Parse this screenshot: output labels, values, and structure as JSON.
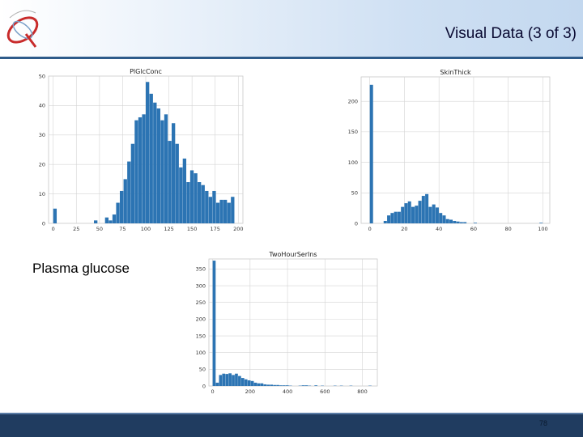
{
  "slide": {
    "title": "Visual Data (3 of 3)",
    "caption": "Plasma glucose",
    "page_number": "78"
  },
  "colors": {
    "bar": "#2c74b3",
    "footer": "#203c60",
    "header_rule": "#2e5b8a"
  },
  "chart_data": [
    {
      "id": "plglc",
      "type": "bar",
      "title": "PlGlcConc",
      "xlim": [
        -5,
        205
      ],
      "ylim": [
        0,
        50
      ],
      "xticks": [
        0,
        25,
        50,
        75,
        100,
        125,
        150,
        175,
        200
      ],
      "yticks": [
        0,
        10,
        20,
        30,
        40,
        50
      ],
      "bin_width": 4,
      "bins": [
        {
          "x": 0,
          "y": 5
        },
        {
          "x": 44,
          "y": 1
        },
        {
          "x": 56,
          "y": 2
        },
        {
          "x": 60,
          "y": 1
        },
        {
          "x": 64,
          "y": 3
        },
        {
          "x": 68,
          "y": 7
        },
        {
          "x": 72,
          "y": 11
        },
        {
          "x": 76,
          "y": 15
        },
        {
          "x": 80,
          "y": 21
        },
        {
          "x": 84,
          "y": 27
        },
        {
          "x": 88,
          "y": 35
        },
        {
          "x": 92,
          "y": 36
        },
        {
          "x": 96,
          "y": 37
        },
        {
          "x": 100,
          "y": 48
        },
        {
          "x": 104,
          "y": 44
        },
        {
          "x": 108,
          "y": 41
        },
        {
          "x": 112,
          "y": 39
        },
        {
          "x": 116,
          "y": 35
        },
        {
          "x": 120,
          "y": 37
        },
        {
          "x": 124,
          "y": 28
        },
        {
          "x": 128,
          "y": 34
        },
        {
          "x": 132,
          "y": 27
        },
        {
          "x": 136,
          "y": 19
        },
        {
          "x": 140,
          "y": 22
        },
        {
          "x": 144,
          "y": 14
        },
        {
          "x": 148,
          "y": 18
        },
        {
          "x": 152,
          "y": 17
        },
        {
          "x": 156,
          "y": 14
        },
        {
          "x": 160,
          "y": 13
        },
        {
          "x": 164,
          "y": 11
        },
        {
          "x": 168,
          "y": 9
        },
        {
          "x": 172,
          "y": 11
        },
        {
          "x": 176,
          "y": 7
        },
        {
          "x": 180,
          "y": 8
        },
        {
          "x": 184,
          "y": 8
        },
        {
          "x": 188,
          "y": 7
        },
        {
          "x": 192,
          "y": 9
        }
      ]
    },
    {
      "id": "skinthick",
      "type": "bar",
      "title": "SkinThick",
      "xlim": [
        -5,
        104
      ],
      "ylim": [
        0,
        240
      ],
      "xticks": [
        0,
        20,
        40,
        60,
        80,
        100
      ],
      "yticks": [
        0,
        50,
        100,
        150,
        200
      ],
      "bin_width": 2,
      "bins": [
        {
          "x": 0,
          "y": 227
        },
        {
          "x": 8,
          "y": 4
        },
        {
          "x": 10,
          "y": 13
        },
        {
          "x": 12,
          "y": 17
        },
        {
          "x": 14,
          "y": 19
        },
        {
          "x": 16,
          "y": 19
        },
        {
          "x": 18,
          "y": 27
        },
        {
          "x": 20,
          "y": 33
        },
        {
          "x": 22,
          "y": 36
        },
        {
          "x": 24,
          "y": 27
        },
        {
          "x": 26,
          "y": 29
        },
        {
          "x": 28,
          "y": 37
        },
        {
          "x": 30,
          "y": 45
        },
        {
          "x": 32,
          "y": 48
        },
        {
          "x": 34,
          "y": 27
        },
        {
          "x": 36,
          "y": 31
        },
        {
          "x": 38,
          "y": 26
        },
        {
          "x": 40,
          "y": 17
        },
        {
          "x": 42,
          "y": 13
        },
        {
          "x": 44,
          "y": 7
        },
        {
          "x": 46,
          "y": 6
        },
        {
          "x": 48,
          "y": 4
        },
        {
          "x": 50,
          "y": 3
        },
        {
          "x": 52,
          "y": 2
        },
        {
          "x": 54,
          "y": 2
        },
        {
          "x": 60,
          "y": 1
        },
        {
          "x": 98,
          "y": 1
        }
      ]
    },
    {
      "id": "twohour",
      "type": "bar",
      "title": "TwoHourSerIns",
      "xlim": [
        -20,
        880
      ],
      "ylim": [
        0,
        380
      ],
      "xticks": [
        0,
        200,
        400,
        600,
        800
      ],
      "yticks": [
        0,
        50,
        100,
        150,
        200,
        250,
        300,
        350
      ],
      "bin_width": 17,
      "bins": [
        {
          "x": 0,
          "y": 375
        },
        {
          "x": 17,
          "y": 10
        },
        {
          "x": 34,
          "y": 33
        },
        {
          "x": 51,
          "y": 37
        },
        {
          "x": 68,
          "y": 36
        },
        {
          "x": 85,
          "y": 38
        },
        {
          "x": 102,
          "y": 33
        },
        {
          "x": 119,
          "y": 37
        },
        {
          "x": 136,
          "y": 30
        },
        {
          "x": 153,
          "y": 24
        },
        {
          "x": 170,
          "y": 20
        },
        {
          "x": 187,
          "y": 17
        },
        {
          "x": 204,
          "y": 15
        },
        {
          "x": 221,
          "y": 10
        },
        {
          "x": 238,
          "y": 8
        },
        {
          "x": 255,
          "y": 8
        },
        {
          "x": 272,
          "y": 5
        },
        {
          "x": 289,
          "y": 4
        },
        {
          "x": 306,
          "y": 4
        },
        {
          "x": 323,
          "y": 3
        },
        {
          "x": 340,
          "y": 3
        },
        {
          "x": 357,
          "y": 2
        },
        {
          "x": 374,
          "y": 2
        },
        {
          "x": 391,
          "y": 2
        },
        {
          "x": 408,
          "y": 1
        },
        {
          "x": 459,
          "y": 1
        },
        {
          "x": 476,
          "y": 2
        },
        {
          "x": 493,
          "y": 2
        },
        {
          "x": 510,
          "y": 1
        },
        {
          "x": 544,
          "y": 2
        },
        {
          "x": 578,
          "y": 1
        },
        {
          "x": 646,
          "y": 1
        },
        {
          "x": 680,
          "y": 1
        },
        {
          "x": 731,
          "y": 1
        },
        {
          "x": 833,
          "y": 1
        }
      ]
    }
  ]
}
